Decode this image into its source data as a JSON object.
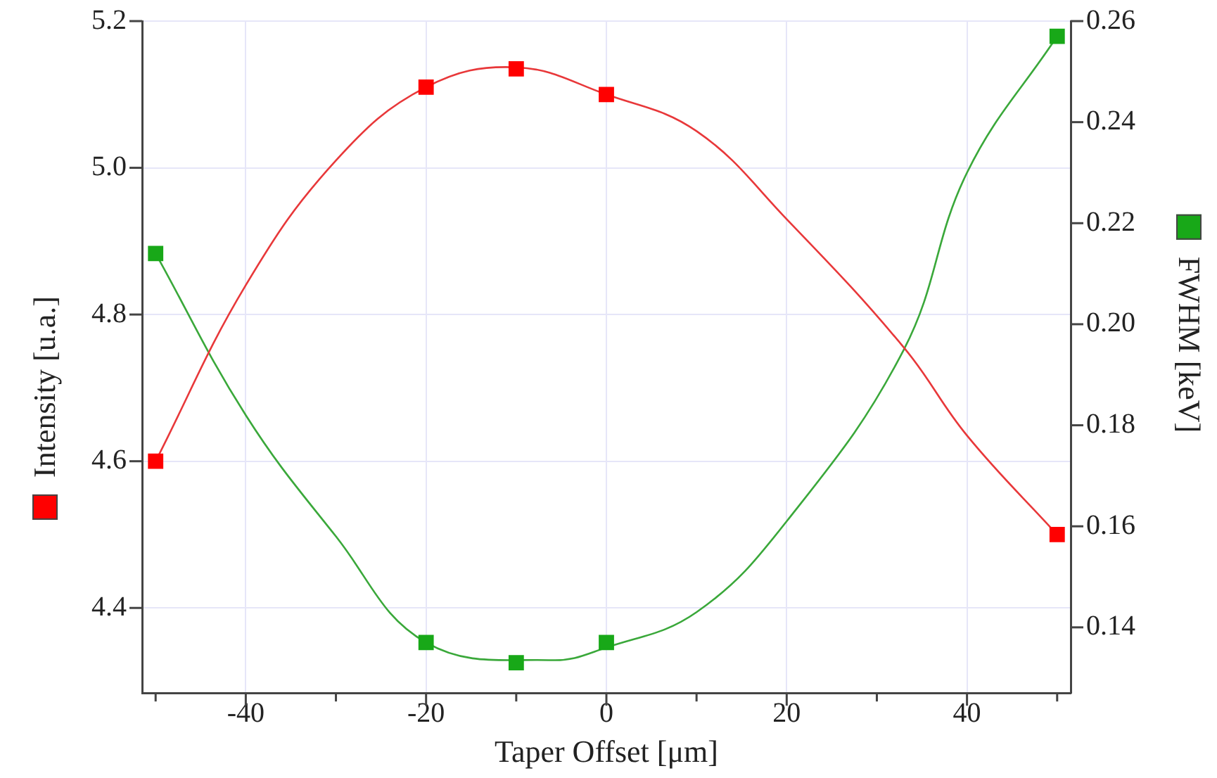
{
  "chart_data": {
    "type": "scatter",
    "xlabel": "Taper Offset [μm]",
    "ylabel": "Intensity [u.a.]",
    "y2label": "FWHM [keV]",
    "xlim": [
      -51.5,
      51.5
    ],
    "xticks": [
      {
        "value": -50,
        "label": null
      },
      -40,
      {
        "value": -30,
        "label": null
      },
      -20,
      {
        "value": -10,
        "label": null
      },
      0,
      {
        "value": 10,
        "label": null
      },
      20,
      {
        "value": 30,
        "label": null
      },
      40,
      {
        "value": 50,
        "label": null
      }
    ],
    "ylim": [
      4.284,
      5.2
    ],
    "yticks": [
      4.4,
      4.6,
      4.8,
      {
        "value": 5,
        "label": "5.0"
      },
      5.2
    ],
    "y2lim": [
      0.127,
      0.26
    ],
    "y2ticks": [
      0.14,
      0.16,
      0.18,
      {
        "value": 0.2,
        "label": "0.20"
      },
      0.22,
      0.24,
      0.26
    ],
    "grid": true,
    "legend": false,
    "series": [
      {
        "type": "line",
        "axis": "y",
        "color": "#e8383a",
        "x": [
          -50,
          -40,
          -30,
          -20,
          -10,
          0,
          10,
          20,
          33,
          40,
          50
        ],
        "values": [
          4.6,
          4.84,
          5.01,
          5.11,
          5.137,
          5.1,
          5.05,
          4.93,
          4.755,
          4.635,
          4.5
        ]
      },
      {
        "type": "line",
        "axis": "y2",
        "color": "#3aa83a",
        "x": [
          -50,
          -40,
          -30,
          -20,
          -6,
          0,
          10,
          20,
          33,
          40,
          50
        ],
        "values": [
          0.214,
          0.182,
          0.158,
          0.137,
          0.1335,
          0.136,
          0.143,
          0.161,
          0.195,
          0.23,
          0.257
        ]
      },
      {
        "axis": "y",
        "marker": "square",
        "color": "#ff0000",
        "x": [
          -50,
          -20,
          -10,
          0,
          50
        ],
        "values": [
          4.6,
          5.11,
          5.135,
          5.1,
          4.5
        ]
      },
      {
        "axis": "y2",
        "marker": "square",
        "color": "#18a818",
        "x": [
          -50,
          -20,
          -10,
          0,
          50
        ],
        "values": [
          0.214,
          0.137,
          0.133,
          0.137,
          0.257
        ]
      }
    ]
  }
}
